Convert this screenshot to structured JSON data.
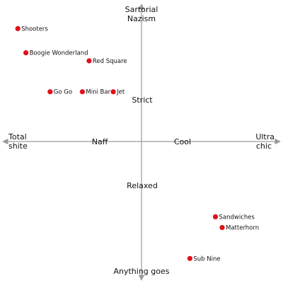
{
  "chart_data": {
    "type": "scatter",
    "title": "",
    "axis_labels": {
      "top": [
        "Sartorial",
        "Nazism"
      ],
      "bottom": [
        "Anything goes"
      ],
      "left": [
        "Total",
        "shite"
      ],
      "right": [
        "Ultra",
        "chic"
      ]
    },
    "quadrant_labels": {
      "upper": "Strict",
      "lower": "Relaxed",
      "left": "Naff",
      "right": "Cool"
    },
    "xlim": [
      -10,
      10
    ],
    "ylim": [
      -10,
      10
    ],
    "grid": false,
    "legend": "none",
    "colors": {
      "axis": "#9a9a9a",
      "point": "#e0101a"
    },
    "points": [
      {
        "label": "Shooters",
        "x": -9.2,
        "y": 8.4
      },
      {
        "label": "Boogie Wonderland",
        "x": -8.6,
        "y": 6.6
      },
      {
        "label": "Red Square",
        "x": -3.9,
        "y": 6.0
      },
      {
        "label": "Go Go",
        "x": -6.8,
        "y": 3.7
      },
      {
        "label": "Mini Bar",
        "x": -4.4,
        "y": 3.7
      },
      {
        "label": "Jet",
        "x": -2.1,
        "y": 3.7
      },
      {
        "label": "Sandwiches",
        "x": 5.5,
        "y": -5.6
      },
      {
        "label": "Matterhorn",
        "x": 6.0,
        "y": -6.4
      },
      {
        "label": "Sub Nine",
        "x": 3.6,
        "y": -8.7
      }
    ]
  }
}
